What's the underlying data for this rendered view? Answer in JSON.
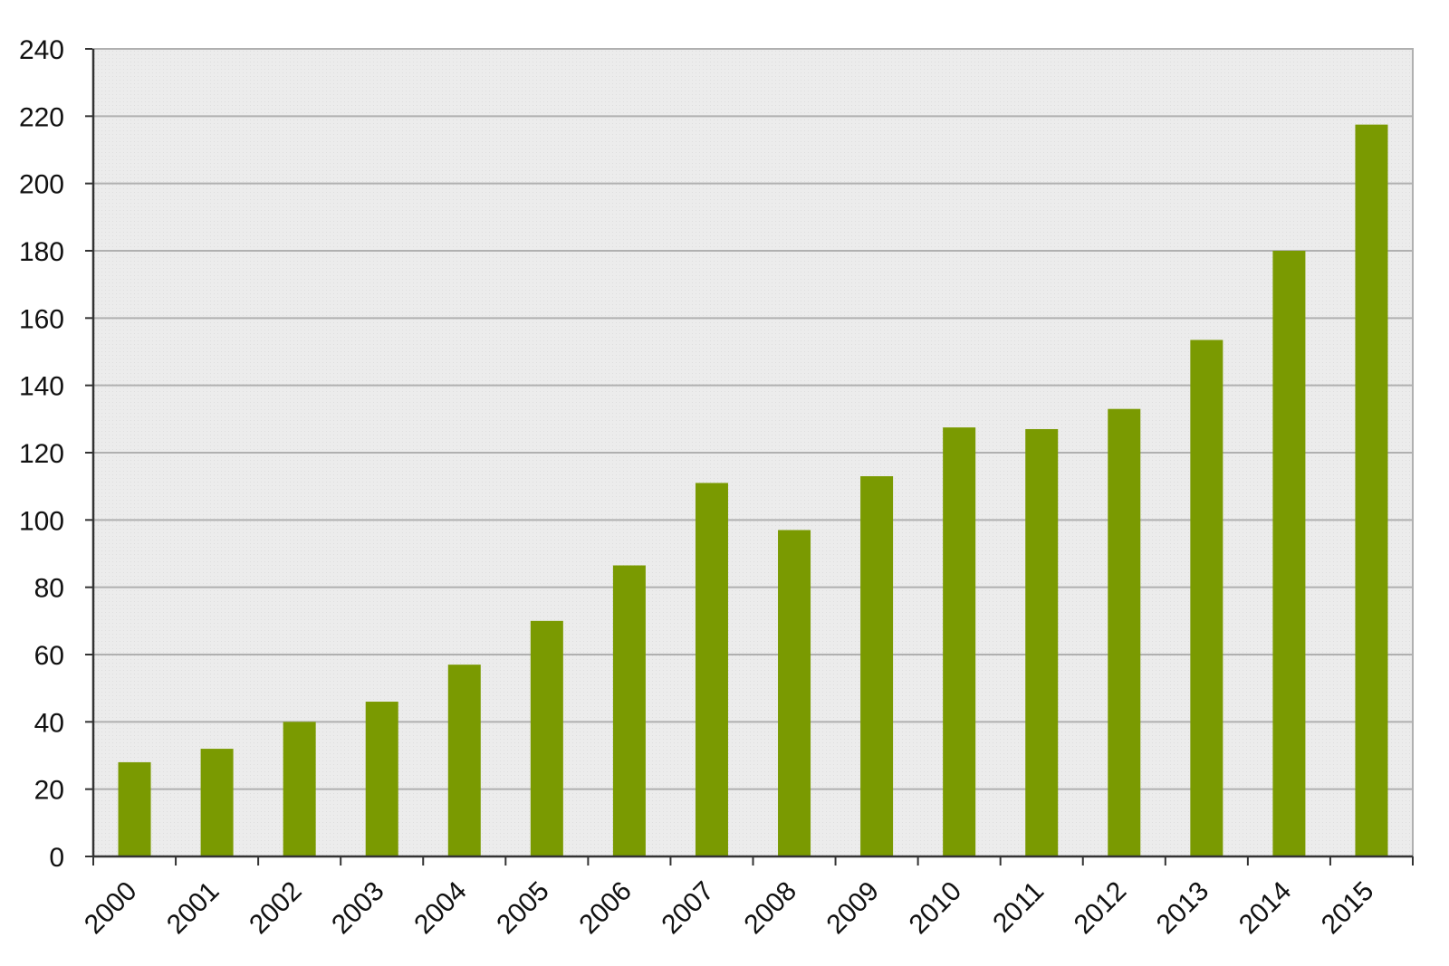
{
  "chart_data": {
    "type": "bar",
    "categories": [
      "2000",
      "2001",
      "2002",
      "2003",
      "2004",
      "2005",
      "2006",
      "2007",
      "2008",
      "2009",
      "2010",
      "2011",
      "2012",
      "2013",
      "2014",
      "2015"
    ],
    "series": [
      {
        "values": [
          28,
          32,
          40,
          46,
          57,
          70,
          86.5,
          111,
          97,
          113,
          127.5,
          127,
          133,
          153.5,
          180,
          217.5
        ]
      }
    ],
    "title": "",
    "xlabel": "",
    "ylabel": "",
    "ylim": [
      0,
      240
    ],
    "yticks": [
      0,
      20,
      40,
      60,
      80,
      100,
      120,
      140,
      160,
      180,
      200,
      220,
      240
    ],
    "grid": true,
    "legend": "none",
    "colors": {
      "bar": "#7a9a01",
      "plot_background": "#ececec",
      "grid": "#b0b0b0",
      "axis": "#333333"
    }
  }
}
